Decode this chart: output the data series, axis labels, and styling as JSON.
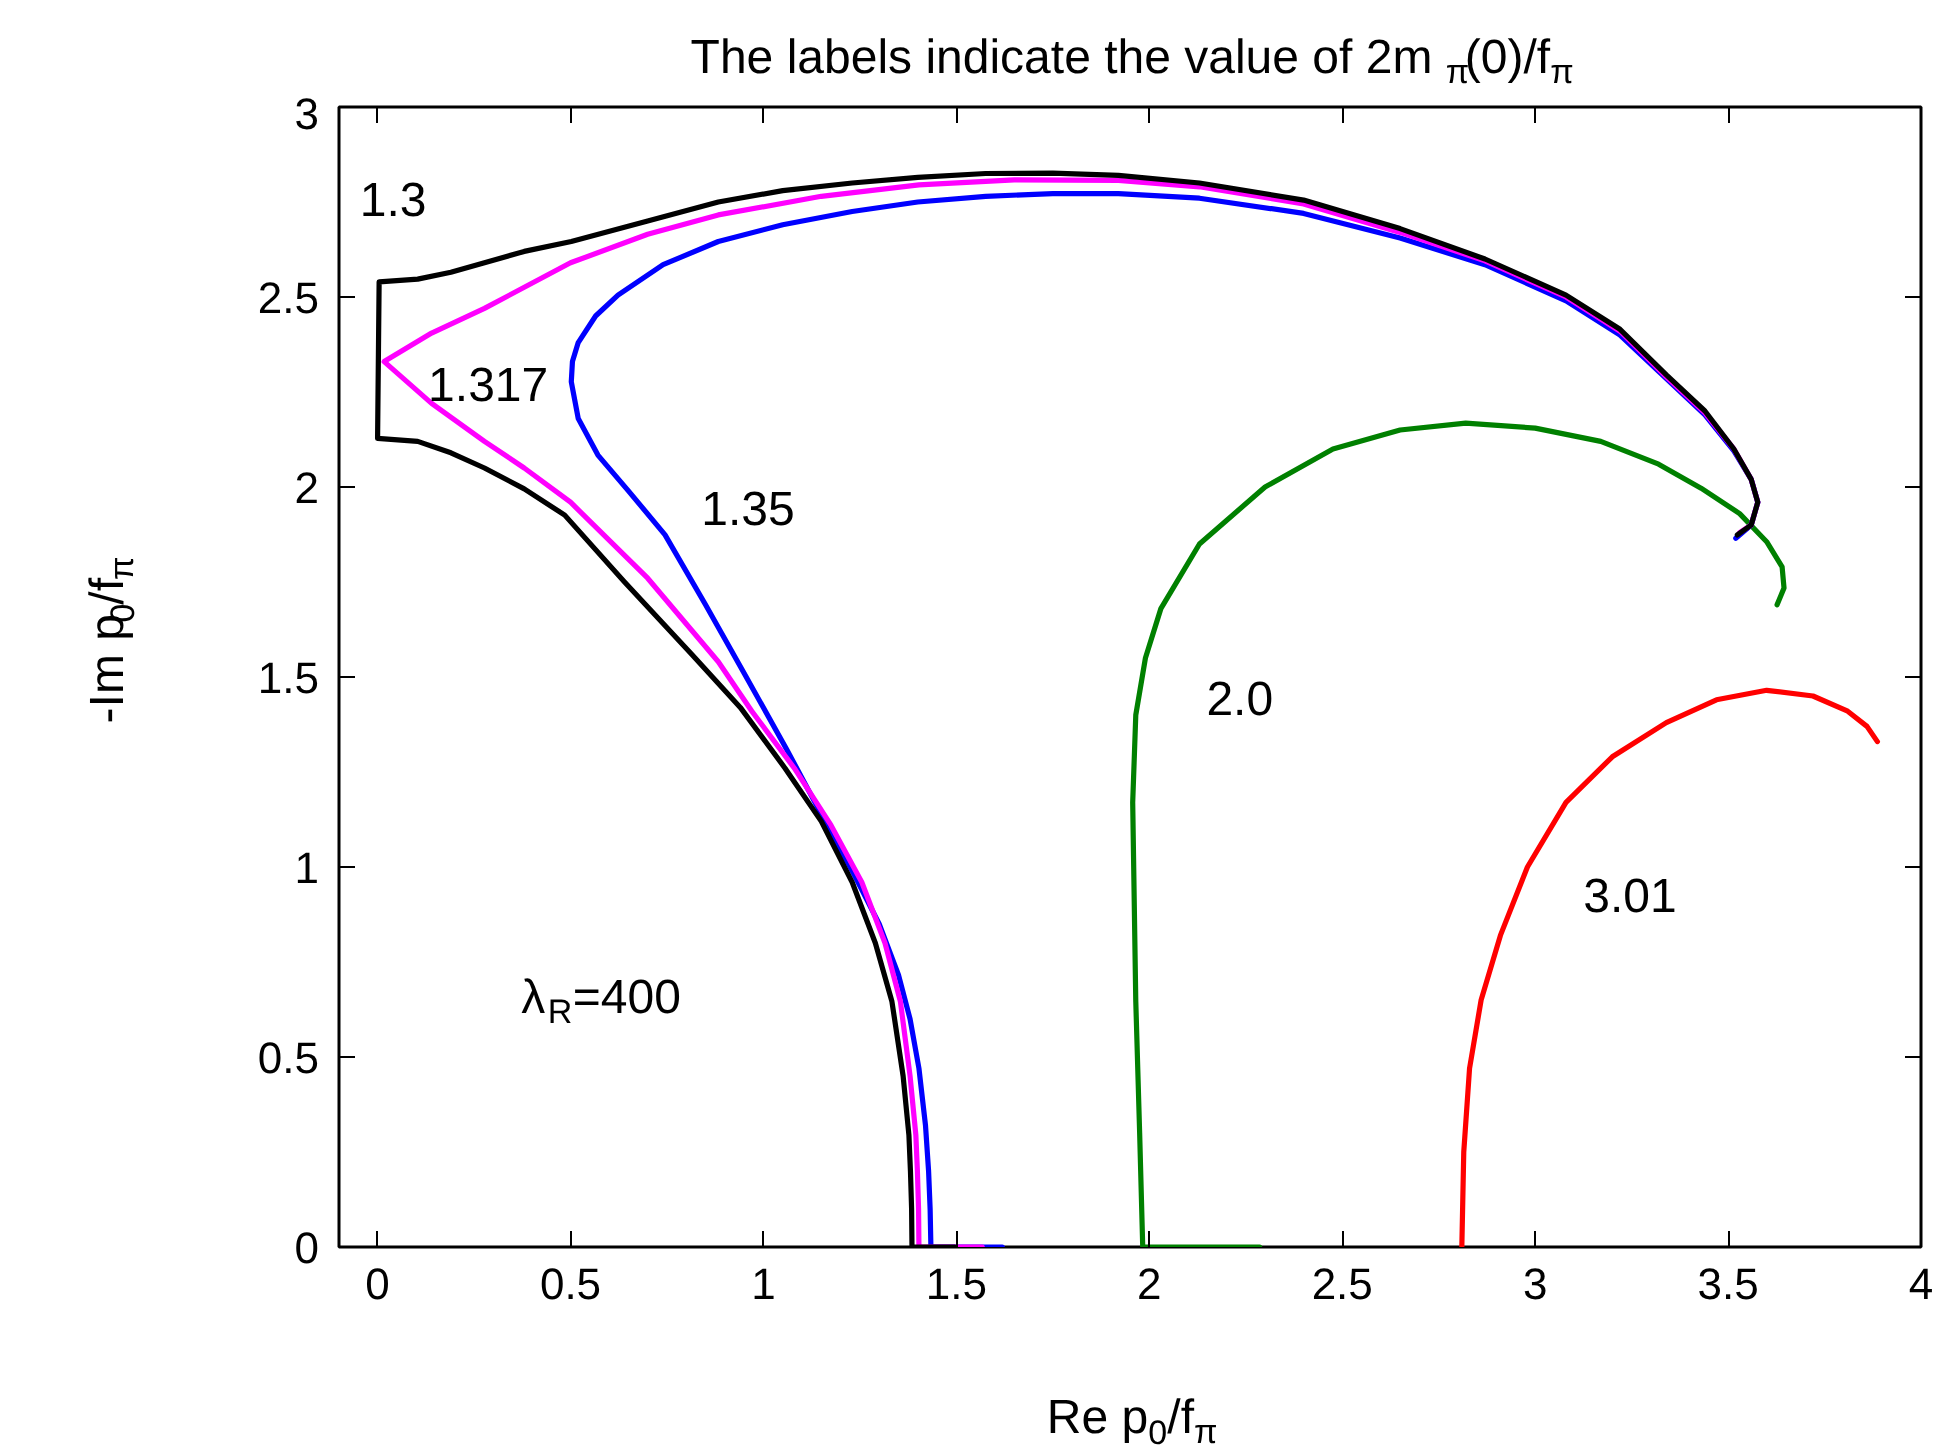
{
  "chart_data": {
    "type": "line",
    "title": "The  labels indicate the value of 2m$_{π}$(0)/f$_{π}$",
    "xlabel": "Re p$_{0}$/f$_{π}$",
    "ylabel": "-Im p$_{0}$/f$_{π}$",
    "xlim": [
      -0.1,
      4
    ],
    "ylim": [
      0,
      3
    ],
    "xticks": [
      0,
      0.5,
      1,
      1.5,
      2,
      2.5,
      3,
      3.5,
      4
    ],
    "yticks": [
      0,
      0.5,
      1,
      1.5,
      2,
      2.5,
      3
    ],
    "annotations": [
      "λ$_{R}$=400"
    ],
    "series": [
      {
        "name": "3.01",
        "color": "#ff0000",
        "x": [
          2.81,
          2.815,
          2.83,
          2.86,
          2.91,
          2.98,
          3.08,
          3.2,
          3.34,
          3.47,
          3.6,
          3.72,
          3.81,
          3.86,
          3.887
        ],
        "values": [
          0,
          0.25,
          0.47,
          0.65,
          0.82,
          1.0,
          1.17,
          1.29,
          1.38,
          1.44,
          1.465,
          1.45,
          1.41,
          1.37,
          1.33
        ]
      },
      {
        "name": "2.0",
        "color": "#008000",
        "x": [
          2.286,
          1.983,
          1.975,
          1.965,
          1.957,
          1.965,
          1.99,
          2.03,
          2.13,
          2.3,
          2.476,
          2.65,
          2.82,
          3.0,
          3.17,
          3.32,
          3.43,
          3.53,
          3.6,
          3.64,
          3.645,
          3.627
        ],
        "values": [
          0,
          0,
          0.3,
          0.646,
          1.17,
          1.4,
          1.55,
          1.68,
          1.85,
          2.0,
          2.1,
          2.15,
          2.168,
          2.155,
          2.12,
          2.06,
          1.997,
          1.93,
          1.856,
          1.79,
          1.734,
          1.69
        ]
      },
      {
        "name": "1.35",
        "color": "#0000ff",
        "x": [
          1.619,
          1.434,
          1.432,
          1.428,
          1.42,
          1.403,
          1.38,
          1.35,
          1.3,
          1.235,
          1.16,
          1.06,
          0.95,
          0.85,
          0.745,
          0.65,
          0.571,
          0.52,
          0.502,
          0.505,
          0.52,
          0.565,
          0.623,
          0.74,
          0.883,
          1.05,
          1.23,
          1.4,
          1.576,
          1.75,
          1.92,
          2.13,
          2.4,
          2.65,
          2.87,
          3.08,
          3.22,
          3.34,
          3.44,
          3.515,
          3.56,
          3.577,
          3.56,
          3.52
        ],
        "values": [
          0,
          0,
          0.1,
          0.2,
          0.32,
          0.47,
          0.6,
          0.716,
          0.85,
          0.98,
          1.12,
          1.31,
          1.51,
          1.69,
          1.874,
          1.99,
          2.084,
          2.18,
          2.277,
          2.33,
          2.38,
          2.45,
          2.505,
          2.585,
          2.646,
          2.69,
          2.725,
          2.75,
          2.765,
          2.772,
          2.772,
          2.76,
          2.72,
          2.655,
          2.585,
          2.49,
          2.4,
          2.285,
          2.19,
          2.095,
          2.02,
          1.96,
          1.9,
          1.865
        ]
      },
      {
        "name": "1.317",
        "color": "#ff00ff",
        "x": [
          1.567,
          1.403,
          1.402,
          1.399,
          1.395,
          1.38,
          1.355,
          1.315,
          1.255,
          1.175,
          1.08,
          0.97,
          0.883,
          0.7,
          0.5,
          0.38,
          0.277,
          0.14,
          0.017,
          0.14,
          0.277,
          0.5,
          0.7,
          0.883,
          1.15,
          1.403,
          1.65,
          1.92,
          2.13,
          2.4,
          2.65,
          2.87,
          3.08,
          3.22,
          3.34,
          3.44,
          3.515,
          3.56,
          3.577,
          3.56,
          3.53
        ],
        "values": [
          0,
          0,
          0.1,
          0.2,
          0.295,
          0.45,
          0.646,
          0.8,
          0.96,
          1.11,
          1.26,
          1.41,
          1.54,
          1.76,
          1.96,
          2.05,
          2.12,
          2.22,
          2.33,
          2.405,
          2.47,
          2.59,
          2.665,
          2.716,
          2.765,
          2.795,
          2.808,
          2.807,
          2.79,
          2.745,
          2.67,
          2.595,
          2.5,
          2.41,
          2.29,
          2.195,
          2.1,
          2.02,
          1.96,
          1.9,
          1.88
        ]
      },
      {
        "name": "1.3",
        "color": "#000000",
        "x": [
          1.496,
          1.385,
          1.384,
          1.381,
          1.377,
          1.362,
          1.333,
          1.29,
          1.23,
          1.15,
          1.056,
          0.94,
          0.814,
          0.64,
          0.485,
          0.38,
          0.277,
          0.19,
          0.104,
          0.0,
          0.004,
          0.104,
          0.19,
          0.277,
          0.38,
          0.502,
          0.7,
          0.883,
          1.05,
          1.23,
          1.4,
          1.576,
          1.75,
          1.92,
          2.13,
          2.4,
          2.65,
          2.87,
          3.08,
          3.22,
          3.34,
          3.44,
          3.515,
          3.56,
          3.577,
          3.56,
          3.524
        ],
        "values": [
          0,
          0,
          0.1,
          0.2,
          0.295,
          0.45,
          0.646,
          0.8,
          0.96,
          1.12,
          1.26,
          1.42,
          1.56,
          1.75,
          1.926,
          1.995,
          2.05,
          2.09,
          2.12,
          2.128,
          2.54,
          2.547,
          2.565,
          2.59,
          2.62,
          2.646,
          2.7,
          2.75,
          2.78,
          2.8,
          2.815,
          2.825,
          2.826,
          2.82,
          2.8,
          2.755,
          2.68,
          2.6,
          2.505,
          2.415,
          2.295,
          2.2,
          2.1,
          2.02,
          1.96,
          1.9,
          1.874
        ]
      }
    ]
  }
}
